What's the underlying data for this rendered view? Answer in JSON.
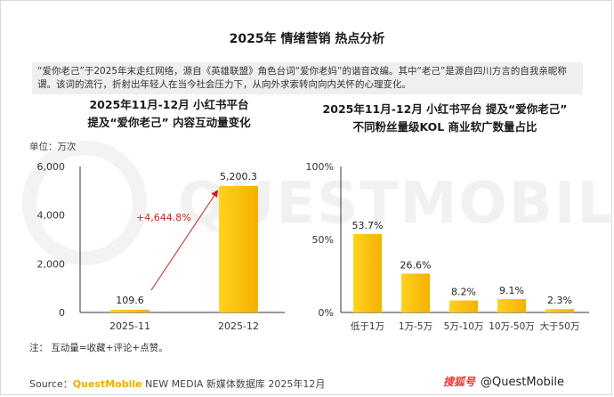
{
  "title": "2025年 情绪营销 热点分析",
  "intro_text": "“爱你老己”于2025年末走红网络，源自《英雄联盟》角色台词“爱你老妈”的谐音改编。其中“老己”是源自四川方言的自我亲昵称谓。该词的流行，折射出年轻人在当今社会压力下，从向外求索转向向内关怀的心理变化。",
  "watermark": "QUESTMOBILE",
  "colors": {
    "bar": "#f9b800",
    "bar_light": "#ffd633",
    "arrow": "#cc1f1f",
    "axis": "#333333"
  },
  "chart_data": [
    {
      "type": "bar",
      "title_line1": "2025年11月-12月 小红书平台",
      "title_line2": "提及“爱你老己” 内容互动量变化",
      "unit": "单位：万次",
      "categories": [
        "2025-11",
        "2025-12"
      ],
      "values": [
        109.6,
        5200.3
      ],
      "data_labels": [
        "109.6",
        "5,200.3"
      ],
      "yticks": [
        "6,000",
        "4,000",
        "2,000",
        "0"
      ],
      "ytick_values": [
        6000,
        4000,
        2000,
        0
      ],
      "ylim": [
        0,
        6000
      ],
      "annotation": "+4,644.8%"
    },
    {
      "type": "bar",
      "title_line1": "2025年11月-12月 小红书平台 提及“爱你老己”",
      "title_line2": "不同粉丝量级KOL 商业软广数量占比",
      "categories": [
        "低于1万",
        "1万-5万",
        "5万-10万",
        "10万-50万",
        "大于50万"
      ],
      "values": [
        53.7,
        26.6,
        8.2,
        9.1,
        2.3
      ],
      "data_labels": [
        "53.7%",
        "26.6%",
        "8.2%",
        "9.1%",
        "2.3%"
      ],
      "yticks": [
        "100%",
        "50%",
        "0%"
      ],
      "ytick_values": [
        100,
        50,
        0
      ],
      "ylim": [
        0,
        100
      ]
    }
  ],
  "note": "注： 互动量=收藏+评论+点赞。",
  "source": {
    "label": "Source：",
    "brand": "QuestMobile",
    "rest": " NEW MEDIA 新媒体数据库 2025年12月"
  },
  "credit": {
    "logo": "搜狐号",
    "text": "@QuestMobile"
  }
}
